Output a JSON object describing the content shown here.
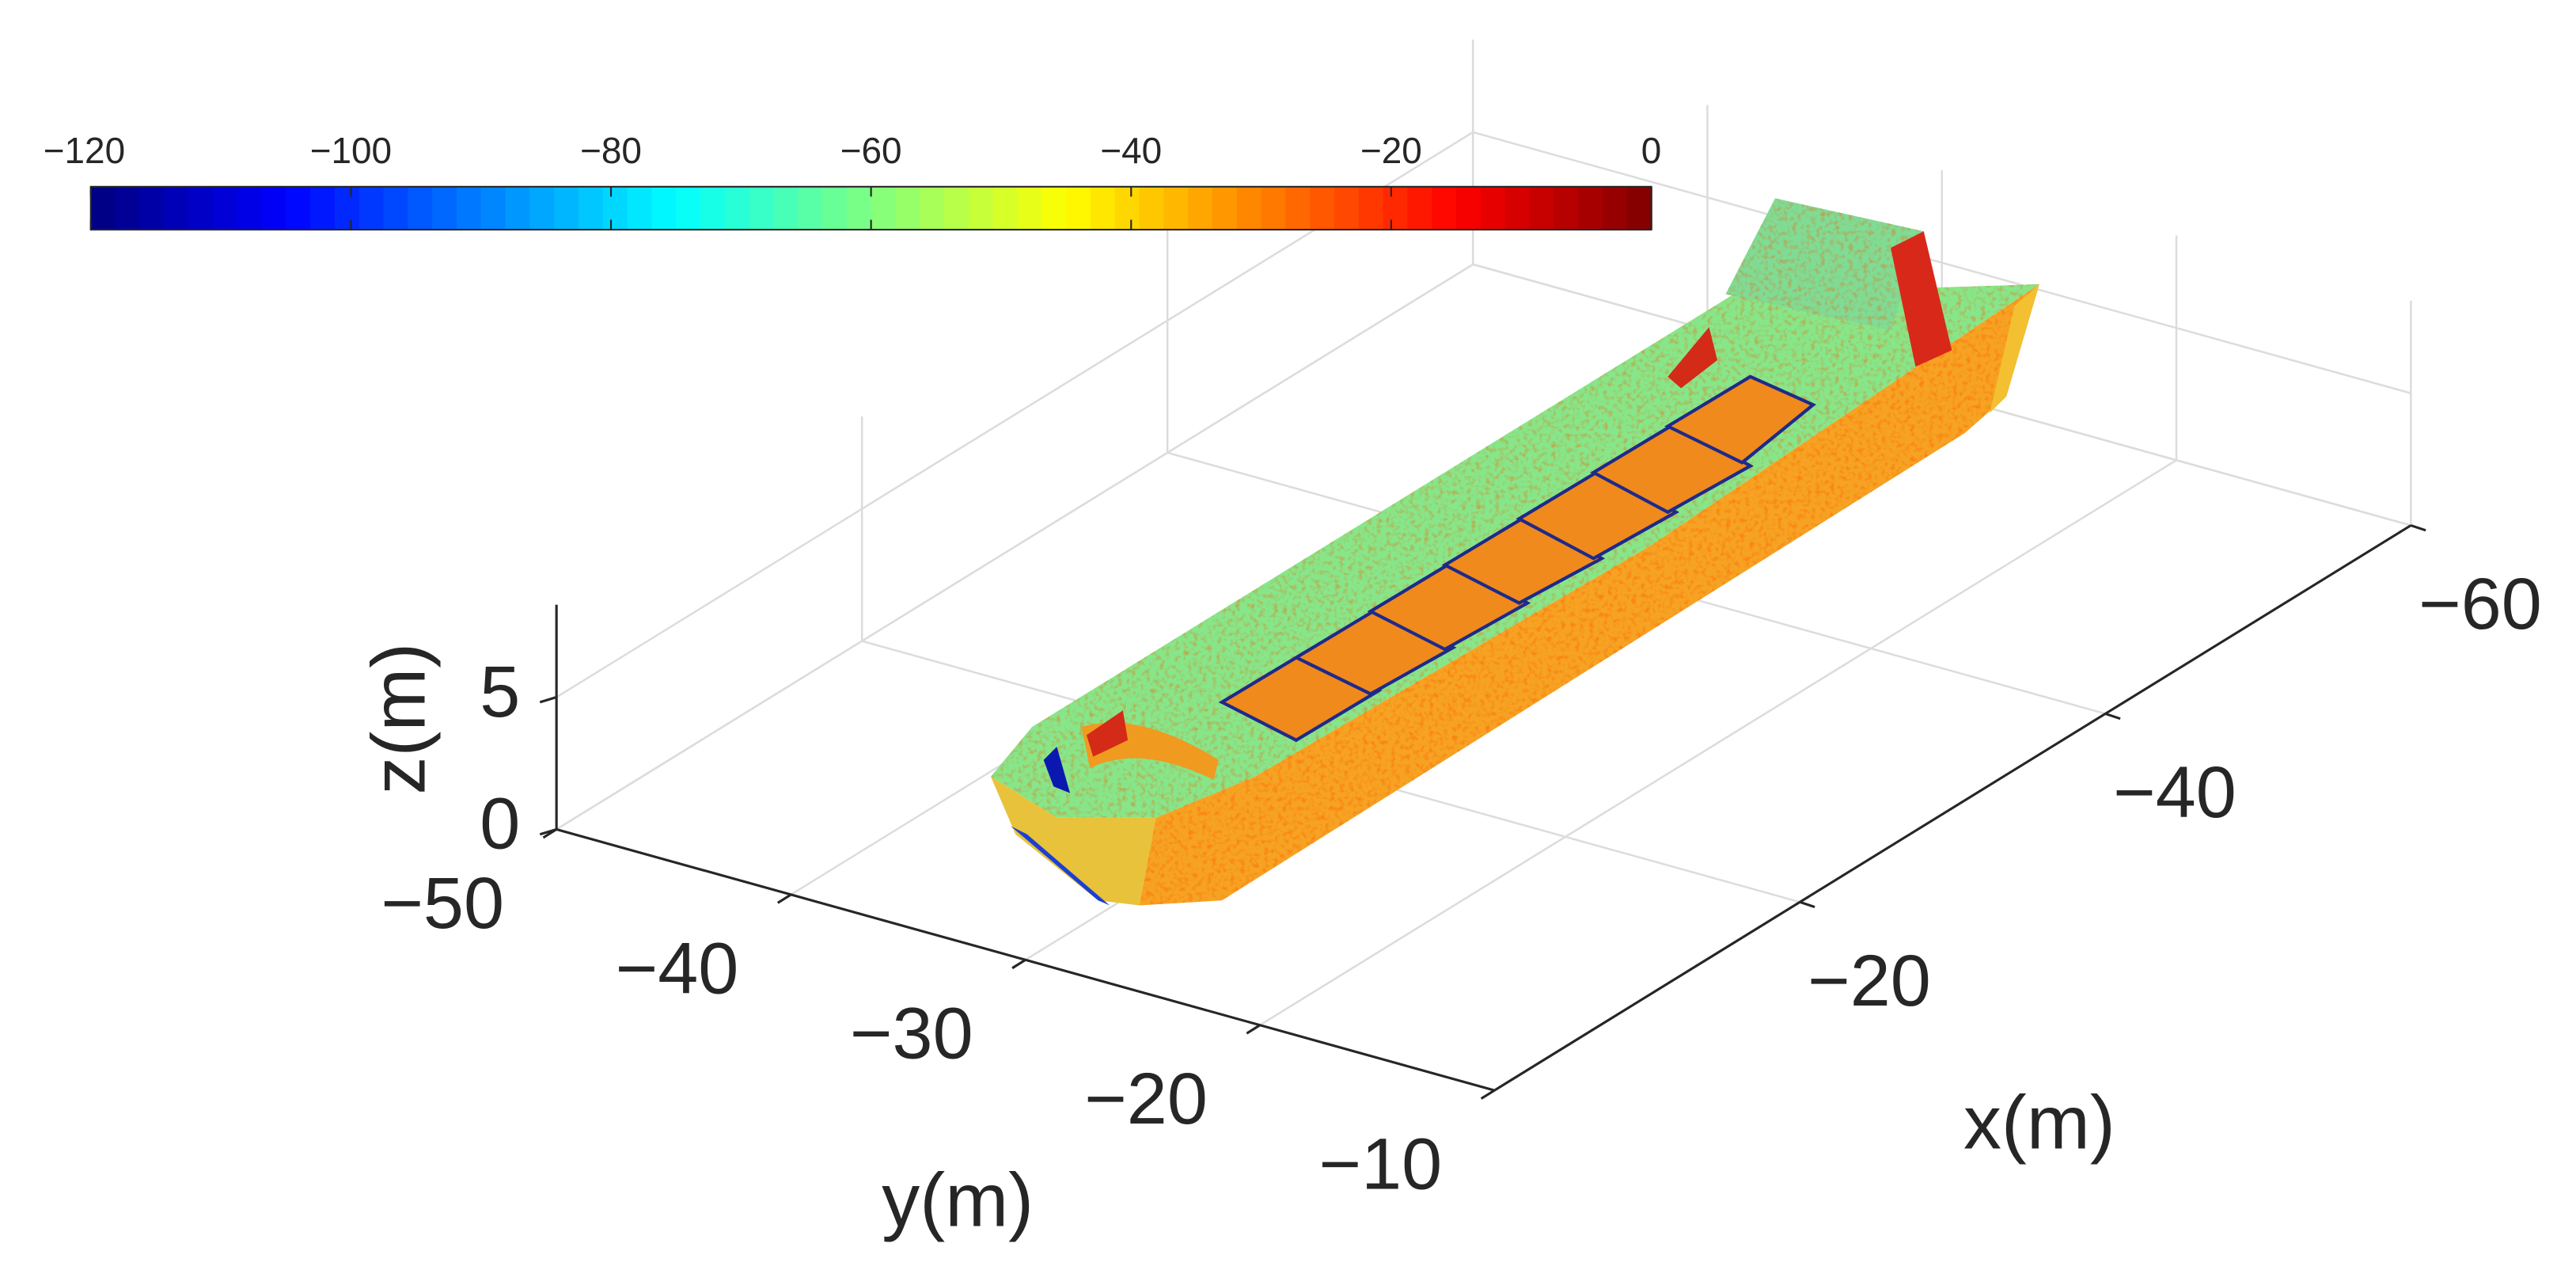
{
  "chart_data": {
    "type": "surface3d",
    "xlabel": "x(m)",
    "ylabel": "y(m)",
    "zlabel": "z(m)",
    "xlim": [
      -60,
      0
    ],
    "ylim": [
      -50,
      -10
    ],
    "zlim": [
      0,
      8.5
    ],
    "xticks": [
      {
        "value": -60,
        "label": "−60"
      },
      {
        "value": -40,
        "label": "−40"
      },
      {
        "value": -20,
        "label": "−20"
      }
    ],
    "yticks": [
      {
        "value": -50,
        "label": "−50"
      },
      {
        "value": -40,
        "label": "−40"
      },
      {
        "value": -30,
        "label": "−30"
      },
      {
        "value": -20,
        "label": "−20"
      },
      {
        "value": -10,
        "label": "−10"
      }
    ],
    "zticks": [
      0,
      5
    ],
    "grid": true,
    "colorbar": {
      "location": "top",
      "colormap": "jet",
      "lim": [
        -120,
        0
      ],
      "ticks": [
        {
          "value": -120,
          "label": "−120"
        },
        {
          "value": -100,
          "label": "−100"
        },
        {
          "value": -80,
          "label": "−80"
        },
        {
          "value": -60,
          "label": "−60"
        },
        {
          "value": -40,
          "label": "−40"
        },
        {
          "value": -20,
          "label": "−20"
        },
        0
      ]
    }
  }
}
